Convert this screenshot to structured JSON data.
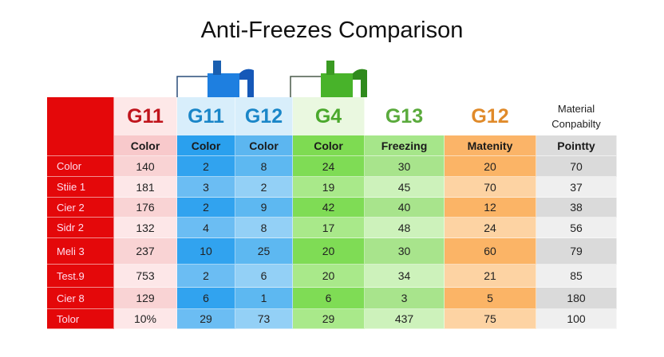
{
  "title": "Anti-Freezes Comparison",
  "icons": [
    "blue-antifreeze-bottle-icon",
    "green-antifreeze-bottle-icon"
  ],
  "chart_data": {
    "type": "table",
    "title": "Anti-Freezes Comparison",
    "columns": [
      {
        "brand": "G11",
        "sub": "Color",
        "brand_color": "#c0141c",
        "head_bg": "#fde8e8",
        "sub_bg": "#f8c9cb",
        "cells_bg": [
          "#f9d3d4",
          "#fde7e8"
        ]
      },
      {
        "brand": "G11",
        "sub": "Color",
        "brand_color": "#1a86c8",
        "head_bg": "#d8eefb",
        "sub_bg": "#2aa0ee",
        "cells_bg": [
          "#31a3ef",
          "#6bbdf3"
        ]
      },
      {
        "brand": "G12",
        "sub": "Color",
        "brand_color": "#1a86c8",
        "head_bg": "#d8eefb",
        "sub_bg": "#5cb6f0",
        "cells_bg": [
          "#5db8f1",
          "#93d0f6"
        ]
      },
      {
        "brand": "G4",
        "sub": "Color",
        "brand_color": "#4aa82c",
        "head_bg": "#eaf8e0",
        "sub_bg": "#7edb52",
        "cells_bg": [
          "#7fdc55",
          "#a9e98a"
        ]
      },
      {
        "brand": "G13",
        "sub": "Freezing",
        "brand_color": "#5aaa3c",
        "head_bg": "#ffffff",
        "sub_bg": "#a6e68a",
        "cells_bg": [
          "#a8e48c",
          "#cdf2bb"
        ]
      },
      {
        "brand": "G12",
        "sub": "Matenity",
        "brand_color": "#e08a2a",
        "head_bg": "#ffffff",
        "sub_bg": "#fbb468",
        "cells_bg": [
          "#fbb466",
          "#fdd3a3"
        ]
      },
      {
        "brand": "Material Conpabilty",
        "sub": "Pointty",
        "brand_color": "#222222",
        "head_bg": "#ffffff",
        "sub_bg": "#dcdcdc",
        "cells_bg": [
          "#dadada",
          "#efefef"
        ]
      }
    ],
    "rows": [
      {
        "label": "Color",
        "values": [
          "140",
          "2",
          "8",
          "24",
          "30",
          "20",
          "70"
        ]
      },
      {
        "label": "Stiie 1",
        "values": [
          "181",
          "3",
          "2",
          "19",
          "45",
          "70",
          "37"
        ]
      },
      {
        "label": "Cier 2",
        "values": [
          "176",
          "2",
          "9",
          "42",
          "40",
          "12",
          "38"
        ]
      },
      {
        "label": "Sidr 2",
        "values": [
          "132",
          "4",
          "8",
          "17",
          "48",
          "24",
          "56"
        ]
      },
      {
        "label": "Meli 3",
        "values": [
          "237",
          "10",
          "25",
          "20",
          "30",
          "60",
          "79"
        ]
      },
      {
        "label": "Test.9",
        "values": [
          "753",
          "2",
          "6",
          "20",
          "34",
          "21",
          "85"
        ]
      },
      {
        "label": "Cier 8",
        "values": [
          "129",
          "6",
          "1",
          "6",
          "3",
          "5",
          "180"
        ]
      },
      {
        "label": "Tolor",
        "values": [
          "10%",
          "29",
          "73",
          "29",
          "437",
          "75",
          "100"
        ]
      }
    ]
  }
}
